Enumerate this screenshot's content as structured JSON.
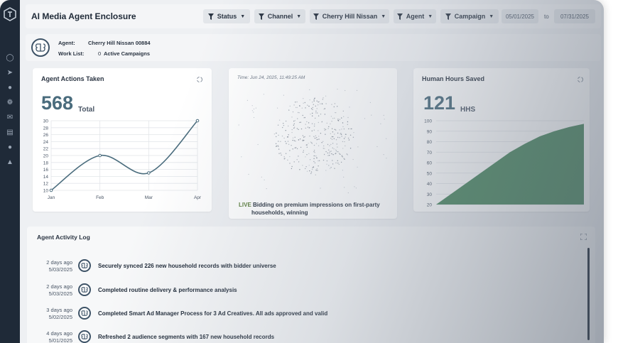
{
  "header": {
    "title": "AI Media Agent Enclosure",
    "filters": [
      "Status",
      "Channel",
      "Cherry Hill Nissan",
      "Agent",
      "Campaign"
    ],
    "date_from": "05/01/2025",
    "date_to_label": "to",
    "date_to": "07/31/2025"
  },
  "agent_info": {
    "agent_label": "Agent:",
    "agent_value": "Cherry Hill Nissan 00884",
    "worklist_label": "Work List:",
    "worklist_count": "0",
    "worklist_value": "Active Campaigns"
  },
  "actions_card": {
    "title": "Agent Actions Taken",
    "total": "568",
    "unit": "Total",
    "y_ticks": [
      "30",
      "28",
      "26",
      "24",
      "22",
      "20",
      "18",
      "16",
      "14",
      "12",
      "10"
    ],
    "x_ticks": [
      "Jan",
      "Feb",
      "Mar",
      "Apr"
    ]
  },
  "live_card": {
    "time_text": "Time: Jun 24, 2025, 11:49:25 AM",
    "live_tag": "LIVE",
    "message_line1": "Bidding on premium impressions on first-party",
    "message_line2": "households, winning"
  },
  "hours_card": {
    "title": "Human Hours Saved",
    "total": "121",
    "unit": "HHS",
    "y_ticks": [
      "100",
      "90",
      "80",
      "70",
      "60",
      "50",
      "40",
      "30",
      "20"
    ]
  },
  "activity_log": {
    "title": "Agent Activity Log",
    "entries": [
      {
        "ago": "2 days ago",
        "date": "5/03/2025",
        "text": "Securely synced 226 new household records with bidder universe"
      },
      {
        "ago": "2 days ago",
        "date": "5/03/2025",
        "text": "Completed routine delivery & performance analysis"
      },
      {
        "ago": "3 days ago",
        "date": "5/02/2025",
        "text": "Completed Smart Ad Manager Process for 3 Ad Creatives. All ads approved and valid"
      },
      {
        "ago": "4 days ago",
        "date": "5/01/2025",
        "text": "Refreshed 2 audience segments with 167 new household records"
      }
    ]
  },
  "chart_data": [
    {
      "type": "line",
      "title": "Agent Actions Taken",
      "categories": [
        "Jan",
        "Feb",
        "Mar",
        "Apr"
      ],
      "values": [
        10,
        20,
        15,
        30
      ],
      "ylim": [
        10,
        30
      ],
      "grid": true
    },
    {
      "type": "area",
      "title": "Human Hours Saved",
      "values": [
        20,
        30,
        40,
        50,
        60,
        70,
        78,
        85,
        90,
        94,
        97
      ],
      "ylim": [
        20,
        100
      ],
      "grid": true,
      "color": "#4e8a63"
    }
  ],
  "colors": {
    "sidebar": "#1f2a38",
    "accent": "#4a6c7d",
    "area_fill": "#4e8a63",
    "live": "#5a7d3a"
  }
}
